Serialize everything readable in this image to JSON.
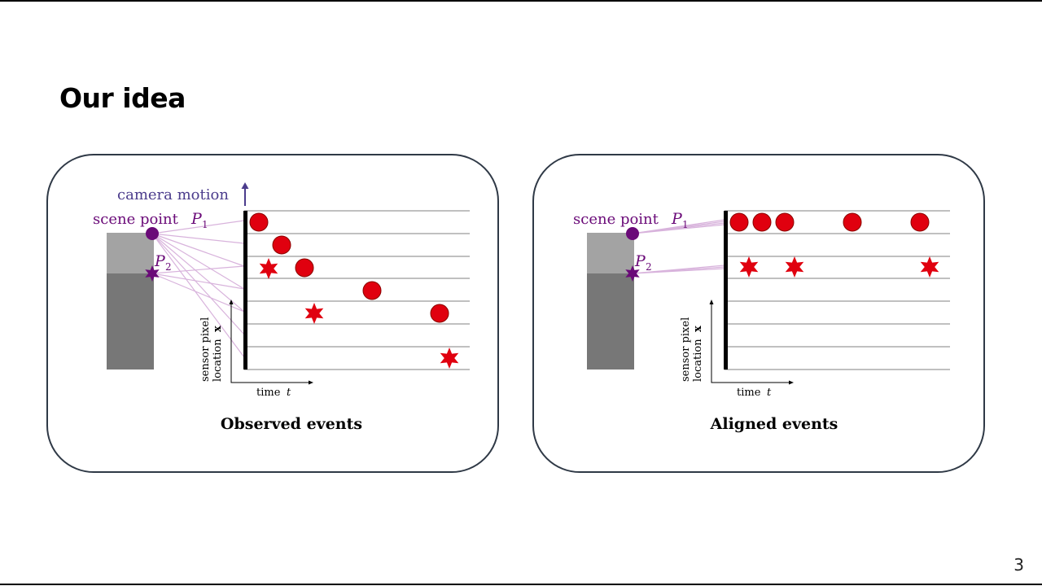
{
  "slide": {
    "title": "Our idea",
    "page_number": "3"
  },
  "panels": [
    {
      "id": "observed",
      "caption": "Observed events",
      "camera_motion_label": "camera motion",
      "scene_point_label": "scene point",
      "p1_label": "P",
      "p1_sub": "1",
      "p2_label": "P",
      "p2_sub": "2",
      "y_axis_label_line1": "sensor pixel",
      "y_axis_label_line2": "location",
      "y_axis_var": "x",
      "x_axis_label": "time",
      "x_axis_var": "t"
    },
    {
      "id": "aligned",
      "caption": "Aligned events",
      "scene_point_label": "scene point",
      "p1_label": "P",
      "p1_sub": "1",
      "p2_label": "P",
      "p2_sub": "2",
      "y_axis_label_line1": "sensor pixel",
      "y_axis_label_line2": "location",
      "y_axis_var": "x",
      "x_axis_label": "time",
      "x_axis_var": "t"
    }
  ],
  "colors": {
    "event": "#e0000f",
    "event_outline": "#8a0000",
    "scene_point": "#6a0a78",
    "ray": "#d8b3dc",
    "motion_label": "#4b3c8c",
    "block_light": "#a3a3a3",
    "block_dark": "#777777",
    "grid_line": "#9a9a9a"
  }
}
